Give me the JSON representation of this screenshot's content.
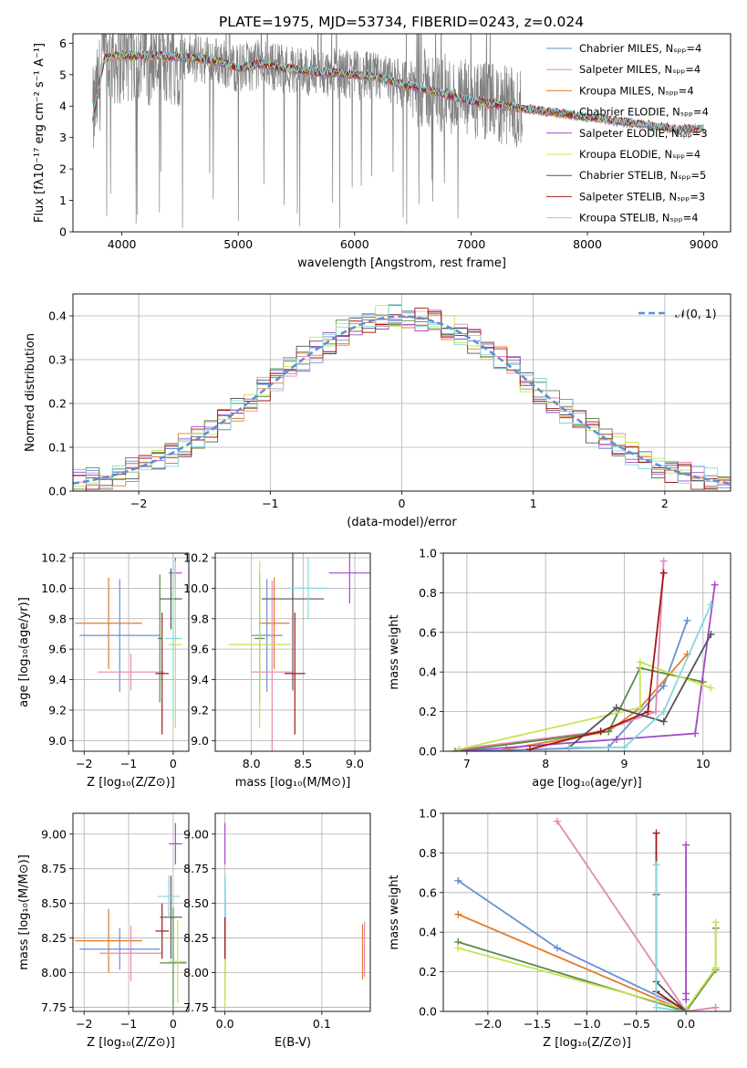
{
  "figure_title": "PLATE=1975, MJD=53734, FIBERID=0243, z=0.024",
  "colors": {
    "chabrier_miles": "#6a8fd4",
    "salpeter_miles": "#e687b4",
    "kroupa_miles": "#e07c2a",
    "chabrier_elodie": "#5a8a4a",
    "salpeter_elodie": "#a24bc4",
    "kroupa_elodie": "#c8e34f",
    "chabrier_stelib": "#555555",
    "salpeter_stelib": "#a01818",
    "kroupa_stelib": "#86d6e0",
    "data": "#808080",
    "grid": "#b0b0b0",
    "normal_curve": "#5b8fd6"
  },
  "chart_data": [
    {
      "id": "spectrum",
      "type": "line",
      "xlabel": "wavelength [Angstrom, rest frame]",
      "ylabel": "Flux [fλ10⁻¹⁷ erg cm⁻² s⁻¹ A⁻¹]",
      "xlim": [
        3580,
        9230
      ],
      "ylim": [
        0,
        6.3
      ],
      "xticks": [
        4000,
        5000,
        6000,
        7000,
        8000,
        9000
      ],
      "yticks": [
        0,
        1,
        2,
        3,
        4,
        5,
        6
      ],
      "grid": false,
      "legend_position": "top-right",
      "legend": [
        {
          "label": "Chabrier MILES, Nₛₚₚ=4",
          "color_key": "chabrier_miles"
        },
        {
          "label": "Salpeter MILES, Nₛₚₚ=4",
          "color_key": "salpeter_miles"
        },
        {
          "label": "Kroupa MILES, Nₛₚₚ=4",
          "color_key": "kroupa_miles"
        },
        {
          "label": "Chabrier ELODIE, Nₛₚₚ=4",
          "color_key": "chabrier_elodie"
        },
        {
          "label": "Salpeter ELODIE, Nₛₚₚ=3",
          "color_key": "salpeter_elodie"
        },
        {
          "label": "Kroupa ELODIE, Nₛₚₚ=4",
          "color_key": "kroupa_elodie"
        },
        {
          "label": "Chabrier STELIB, Nₛₚₚ=5",
          "color_key": "chabrier_stelib"
        },
        {
          "label": "Salpeter STELIB, Nₛₚₚ=3",
          "color_key": "salpeter_stelib"
        },
        {
          "label": "Kroupa STELIB, Nₛₚₚ=4",
          "color_key": "kroupa_stelib"
        }
      ],
      "continuum": {
        "x": [
          3750,
          3850,
          3950,
          4100,
          4300,
          4500,
          4700,
          4850,
          5000,
          5200,
          5400,
          5600,
          5800,
          6000,
          6200,
          6400,
          6600,
          6800,
          7000,
          7200,
          7400,
          7600,
          7800,
          8000,
          8200,
          8400,
          8600,
          8800,
          9000
        ],
        "y": [
          3.6,
          5.5,
          5.6,
          5.6,
          5.6,
          5.55,
          5.5,
          5.4,
          5.2,
          5.35,
          5.2,
          5.1,
          5.05,
          5.0,
          4.9,
          4.7,
          4.55,
          4.35,
          4.15,
          4.05,
          3.95,
          3.85,
          3.75,
          3.65,
          3.55,
          3.45,
          3.35,
          3.25,
          3.3
        ]
      },
      "data_range": [
        3750,
        7440
      ]
    },
    {
      "id": "residuals",
      "type": "line",
      "xlabel": "(data-model)/error",
      "ylabel": "Normed distribution",
      "xlim": [
        -2.5,
        2.5
      ],
      "ylim": [
        0,
        0.45
      ],
      "xticks": [
        -2,
        -1,
        0,
        1,
        2
      ],
      "yticks": [
        0.0,
        0.1,
        0.2,
        0.3,
        0.4
      ],
      "grid": true,
      "legend_position": "top-right",
      "legend": [
        {
          "label": "𝒩(0, 1)",
          "color_key": "normal_curve"
        }
      ],
      "bin_width": 0.1
    },
    {
      "id": "age_vs_Z",
      "type": "scatter",
      "xlabel": "Z [log₁₀(Z/Z⊙)]",
      "ylabel": "age  [log₁₀(age/yr)]",
      "xlim": [
        -2.25,
        0.35
      ],
      "ylim": [
        8.93,
        10.23
      ],
      "xticks": [
        -2,
        -1,
        0
      ],
      "yticks": [
        9.0,
        9.2,
        9.4,
        9.6,
        9.8,
        10.0,
        10.2
      ],
      "grid": true,
      "points": [
        {
          "color_key": "chabrier_miles",
          "x": -1.2,
          "xerr": 0.9,
          "y": 9.69,
          "yerr": 0.37
        },
        {
          "color_key": "kroupa_miles",
          "x": -1.45,
          "xerr": 0.75,
          "y": 9.77,
          "yerr": 0.3
        },
        {
          "color_key": "salpeter_miles",
          "x": -0.95,
          "xerr": 0.75,
          "y": 9.45,
          "yerr": 0.12
        },
        {
          "color_key": "chabrier_elodie",
          "x": -0.3,
          "xerr": 0.05,
          "y": 9.67,
          "yerr": 0.42
        },
        {
          "color_key": "salpeter_elodie",
          "x": 0.05,
          "xerr": 0.15,
          "y": 10.1,
          "yerr": 0.1
        },
        {
          "color_key": "kroupa_elodie",
          "x": 0.05,
          "xerr": 0.15,
          "y": 9.63,
          "yerr": 0.55
        },
        {
          "color_key": "chabrier_stelib",
          "x": -0.05,
          "xerr": 0.25,
          "y": 9.93,
          "yerr": 0.2
        },
        {
          "color_key": "salpeter_stelib",
          "x": -0.25,
          "xerr": 0.15,
          "y": 9.44,
          "yerr": 0.4
        },
        {
          "color_key": "kroupa_stelib",
          "x": 0.0,
          "xerr": 0.2,
          "y": 9.67,
          "yerr": 0.55
        }
      ]
    },
    {
      "id": "age_vs_mass",
      "type": "scatter",
      "xlabel": "mass [log₁₀(M/M⊙)]",
      "ylabel": "",
      "xlim": [
        7.65,
        9.15
      ],
      "ylim": [
        8.93,
        10.23
      ],
      "xticks": [
        8.0,
        8.5,
        9.0
      ],
      "yticks": [
        9.0,
        9.2,
        9.4,
        9.6,
        9.8,
        10.0,
        10.2
      ],
      "grid": true,
      "points": [
        {
          "color_key": "chabrier_miles",
          "x": 8.15,
          "xerr": 0.15,
          "y": 9.69,
          "yerr": 0.37
        },
        {
          "color_key": "kroupa_miles",
          "x": 8.22,
          "xerr": 0.15,
          "y": 9.77,
          "yerr": 0.3
        },
        {
          "color_key": "salpeter_miles",
          "x": 8.2,
          "xerr": 0.2,
          "y": 9.45,
          "yerr": 0.6
        },
        {
          "color_key": "chabrier_elodie",
          "x": 8.08,
          "xerr": 0.05,
          "y": 9.67,
          "yerr": 0.42
        },
        {
          "color_key": "salpeter_elodie",
          "x": 8.95,
          "xerr": 0.2,
          "y": 10.1,
          "yerr": 0.2
        },
        {
          "color_key": "kroupa_elodie",
          "x": 8.08,
          "xerr": 0.3,
          "y": 9.63,
          "yerr": 0.55
        },
        {
          "color_key": "chabrier_stelib",
          "x": 8.4,
          "xerr": 0.3,
          "y": 9.93,
          "yerr": 0.6
        },
        {
          "color_key": "salpeter_stelib",
          "x": 8.42,
          "xerr": 0.1,
          "y": 9.44,
          "yerr": 0.4
        },
        {
          "color_key": "kroupa_stelib",
          "x": 8.55,
          "xerr": 0.2,
          "y": 10.0,
          "yerr": 0.2
        }
      ]
    },
    {
      "id": "weight_vs_age",
      "type": "line",
      "xlabel": "age  [log₁₀(age/yr)]",
      "ylabel": "mass weight",
      "xlim": [
        6.7,
        10.35
      ],
      "ylim": [
        0,
        1.0
      ],
      "xticks": [
        7,
        8,
        9,
        10
      ],
      "yticks": [
        0.0,
        0.2,
        0.4,
        0.6,
        0.8,
        1.0
      ],
      "grid": true,
      "series": [
        {
          "color_key": "chabrier_miles",
          "x": [
            7.0,
            8.8,
            9.5,
            9.8
          ],
          "y": [
            0.0,
            0.02,
            0.33,
            0.66
          ]
        },
        {
          "color_key": "kroupa_miles",
          "x": [
            7.5,
            8.8,
            9.2,
            9.8
          ],
          "y": [
            0.01,
            0.1,
            0.22,
            0.49
          ]
        },
        {
          "color_key": "salpeter_miles",
          "x": [
            6.9,
            8.7,
            9.4,
            9.5
          ],
          "y": [
            0.01,
            0.1,
            0.2,
            0.96
          ]
        },
        {
          "color_key": "chabrier_elodie",
          "x": [
            6.85,
            8.8,
            9.2,
            10.0
          ],
          "y": [
            0.0,
            0.1,
            0.42,
            0.35
          ]
        },
        {
          "color_key": "salpeter_elodie",
          "x": [
            6.9,
            8.9,
            9.9,
            10.15
          ],
          "y": [
            0.0,
            0.06,
            0.09,
            0.84
          ]
        },
        {
          "color_key": "kroupa_elodie",
          "x": [
            6.9,
            9.2,
            9.2,
            10.1
          ],
          "y": [
            0.01,
            0.22,
            0.45,
            0.32
          ]
        },
        {
          "color_key": "chabrier_stelib",
          "x": [
            8.3,
            8.9,
            9.5,
            10.1
          ],
          "y": [
            0.02,
            0.22,
            0.15,
            0.59
          ]
        },
        {
          "color_key": "salpeter_stelib",
          "x": [
            7.8,
            8.7,
            9.3,
            9.5
          ],
          "y": [
            0.01,
            0.1,
            0.2,
            0.9
          ]
        },
        {
          "color_key": "kroupa_stelib",
          "x": [
            8.3,
            9.0,
            9.5,
            10.1
          ],
          "y": [
            0.02,
            0.02,
            0.2,
            0.74
          ]
        }
      ]
    },
    {
      "id": "mass_vs_Z",
      "type": "scatter",
      "xlabel": "Z [log₁₀(Z/Z⊙)]",
      "ylabel": "mass [log₁₀(M/M⊙)]",
      "xlim": [
        -2.25,
        0.35
      ],
      "ylim": [
        7.72,
        9.15
      ],
      "xticks": [
        -2,
        -1,
        0
      ],
      "yticks": [
        7.75,
        8.0,
        8.25,
        8.5,
        8.75,
        9.0
      ],
      "grid": true,
      "points": [
        {
          "color_key": "chabrier_miles",
          "x": -1.2,
          "xerr": 0.9,
          "y": 8.17,
          "yerr": 0.15
        },
        {
          "color_key": "kroupa_miles",
          "x": -1.45,
          "xerr": 0.75,
          "y": 8.23,
          "yerr": 0.23
        },
        {
          "color_key": "salpeter_miles",
          "x": -0.95,
          "xerr": 0.7,
          "y": 8.14,
          "yerr": 0.2
        },
        {
          "color_key": "chabrier_elodie",
          "x": 0.0,
          "xerr": 0.3,
          "y": 8.07,
          "yerr": 0.4
        },
        {
          "color_key": "salpeter_elodie",
          "x": 0.05,
          "xerr": 0.15,
          "y": 8.93,
          "yerr": 0.15
        },
        {
          "color_key": "kroupa_elodie",
          "x": 0.1,
          "xerr": 0.2,
          "y": 8.08,
          "yerr": 0.3
        },
        {
          "color_key": "chabrier_stelib",
          "x": -0.05,
          "xerr": 0.25,
          "y": 8.4,
          "yerr": 0.3
        },
        {
          "color_key": "salpeter_stelib",
          "x": -0.25,
          "xerr": 0.15,
          "y": 8.3,
          "yerr": 0.2
        },
        {
          "color_key": "kroupa_stelib",
          "x": -0.1,
          "xerr": 0.25,
          "y": 8.55,
          "yerr": 0.15
        }
      ]
    },
    {
      "id": "mass_vs_ebv",
      "type": "scatter",
      "xlabel": "E(B-V)",
      "ylabel": "",
      "xlim": [
        -0.01,
        0.15
      ],
      "ylim": [
        7.72,
        9.15
      ],
      "xticks": [
        0.0,
        0.1
      ],
      "yticks": [
        7.75,
        8.0,
        8.25,
        8.5,
        8.75,
        9.0
      ],
      "grid": true,
      "points": [
        {
          "color_key": "chabrier_miles",
          "x": 0.0,
          "xerr": 0,
          "y": 8.17,
          "yerr": 0.15
        },
        {
          "color_key": "kroupa_miles",
          "x": 0.142,
          "xerr": 0,
          "y": 8.15,
          "yerr": 0.2
        },
        {
          "color_key": "salpeter_miles",
          "x": 0.144,
          "xerr": 0,
          "y": 8.17,
          "yerr": 0.2
        },
        {
          "color_key": "chabrier_elodie",
          "x": 0.0,
          "xerr": 0,
          "y": 8.2,
          "yerr": 0.4
        },
        {
          "color_key": "salpeter_elodie",
          "x": 0.0,
          "xerr": 0,
          "y": 8.93,
          "yerr": 0.15
        },
        {
          "color_key": "kroupa_elodie",
          "x": 0.0,
          "xerr": 0,
          "y": 8.1,
          "yerr": 0.35
        },
        {
          "color_key": "chabrier_stelib",
          "x": 0.0,
          "xerr": 0,
          "y": 8.4,
          "yerr": 0.3
        },
        {
          "color_key": "salpeter_stelib",
          "x": 0.0,
          "xerr": 0,
          "y": 8.3,
          "yerr": 0.2
        },
        {
          "color_key": "kroupa_stelib",
          "x": 0.0,
          "xerr": 0,
          "y": 8.55,
          "yerr": 0.15
        }
      ]
    },
    {
      "id": "weight_vs_Z",
      "type": "line",
      "xlabel": "Z [log₁₀(Z/Z⊙)]",
      "ylabel": "mass weight",
      "xlim": [
        -2.45,
        0.45
      ],
      "ylim": [
        0,
        1.0
      ],
      "xticks": [
        -2.0,
        -1.5,
        -1.0,
        -0.5,
        0.0
      ],
      "yticks": [
        0.0,
        0.2,
        0.4,
        0.6,
        0.8,
        1.0
      ],
      "grid": true,
      "series": [
        {
          "color_key": "chabrier_miles",
          "x": [
            -2.3,
            -1.3,
            0.0
          ],
          "y": [
            0.66,
            0.32,
            0.01
          ]
        },
        {
          "color_key": "kroupa_miles",
          "x": [
            -2.3,
            0.0
          ],
          "y": [
            0.49,
            0.0
          ]
        },
        {
          "color_key": "salpeter_miles",
          "x": [
            -1.3,
            0.0,
            0.3
          ],
          "y": [
            0.96,
            0.0,
            0.02
          ]
        },
        {
          "color_key": "chabrier_elodie",
          "x": [
            -2.3,
            0.0,
            0.3,
            0.3
          ],
          "y": [
            0.35,
            0.0,
            0.21,
            0.42
          ]
        },
        {
          "color_key": "salpeter_elodie",
          "x": [
            0.0,
            0.0,
            0.0
          ],
          "y": [
            0.84,
            0.09,
            0.06
          ]
        },
        {
          "color_key": "kroupa_elodie",
          "x": [
            -2.3,
            0.0,
            0.3,
            0.3
          ],
          "y": [
            0.32,
            0.01,
            0.22,
            0.45
          ]
        },
        {
          "color_key": "chabrier_stelib",
          "x": [
            -0.3,
            -0.3,
            0.0
          ],
          "y": [
            0.59,
            0.15,
            0.0
          ]
        },
        {
          "color_key": "salpeter_stelib",
          "x": [
            -0.3,
            -0.3,
            0.0
          ],
          "y": [
            0.9,
            0.1,
            0.0
          ]
        },
        {
          "color_key": "kroupa_stelib",
          "x": [
            -0.3,
            -0.3,
            0.0
          ],
          "y": [
            0.74,
            0.02,
            0.0
          ]
        }
      ]
    }
  ]
}
